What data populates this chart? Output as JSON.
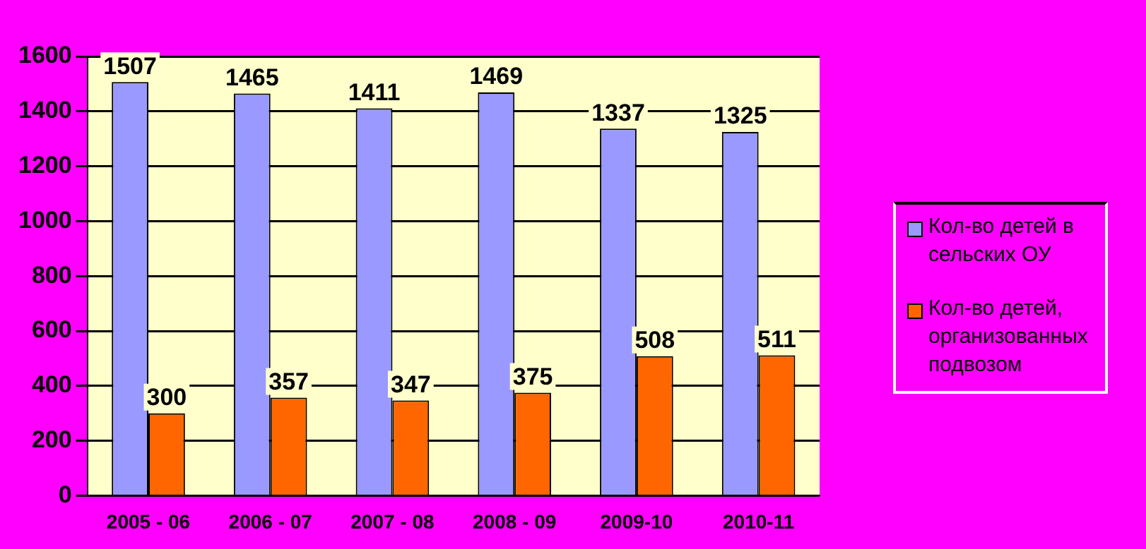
{
  "chart_data": {
    "type": "bar",
    "categories": [
      "2005 - 06",
      "2006 - 07",
      "2007 - 08",
      "2008 - 09",
      "2009-10",
      "2010-11"
    ],
    "series": [
      {
        "name": "Кол-во детей в сельских ОУ",
        "color": "#9999ff",
        "values": [
          1507,
          1465,
          1411,
          1469,
          1337,
          1325
        ]
      },
      {
        "name": "Кол-во детей, организованных подвозом",
        "color": "#ff6600",
        "values": [
          300,
          357,
          347,
          375,
          508,
          511
        ]
      }
    ],
    "ylim": [
      0,
      1600
    ],
    "yticks": [
      0,
      200,
      400,
      600,
      800,
      1000,
      1200,
      1400,
      1600
    ],
    "grid": "y",
    "legend": "right",
    "data_labels": true
  }
}
